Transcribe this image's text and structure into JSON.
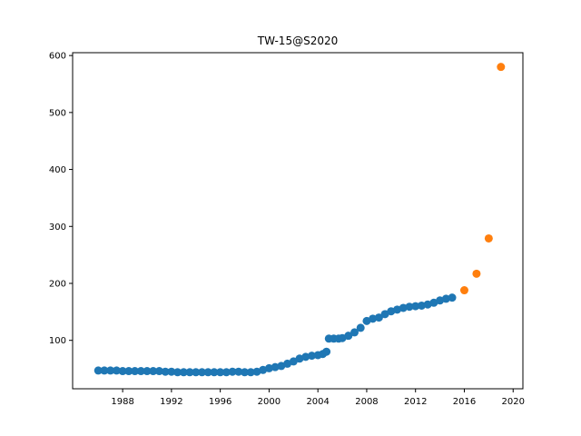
{
  "chart_data": {
    "type": "scatter",
    "title": "TW-15@S2020",
    "xlabel": "",
    "ylabel": "",
    "xlim": [
      1983.9,
      2020.8
    ],
    "ylim": [
      15,
      605
    ],
    "xticks": [
      1988,
      1992,
      1996,
      2000,
      2004,
      2008,
      2012,
      2016,
      2020
    ],
    "yticks": [
      100,
      200,
      300,
      400,
      500,
      600
    ],
    "grid": false,
    "legend": "none",
    "series": [
      {
        "color": "#1f77b4",
        "points": [
          [
            1986.0,
            47
          ],
          [
            1986.5,
            47
          ],
          [
            1987.0,
            47
          ],
          [
            1987.5,
            47
          ],
          [
            1988.0,
            46
          ],
          [
            1988.5,
            46
          ],
          [
            1989.0,
            46
          ],
          [
            1989.5,
            46
          ],
          [
            1990.0,
            46
          ],
          [
            1990.5,
            46
          ],
          [
            1991.0,
            46
          ],
          [
            1991.5,
            45
          ],
          [
            1992.0,
            45
          ],
          [
            1992.5,
            44
          ],
          [
            1993.0,
            44
          ],
          [
            1993.5,
            44
          ],
          [
            1994.0,
            44
          ],
          [
            1994.5,
            44
          ],
          [
            1995.0,
            44
          ],
          [
            1995.5,
            44
          ],
          [
            1996.0,
            44
          ],
          [
            1996.5,
            44
          ],
          [
            1997.0,
            45
          ],
          [
            1997.5,
            45
          ],
          [
            1998.0,
            44
          ],
          [
            1998.5,
            44
          ],
          [
            1999.0,
            45
          ],
          [
            1999.5,
            48
          ],
          [
            2000.0,
            51
          ],
          [
            2000.5,
            53
          ],
          [
            2001.0,
            55
          ],
          [
            2001.5,
            59
          ],
          [
            2002.0,
            63
          ],
          [
            2002.5,
            68
          ],
          [
            2003.0,
            71
          ],
          [
            2003.5,
            73
          ],
          [
            2004.0,
            74
          ],
          [
            2004.4,
            76
          ],
          [
            2004.7,
            80
          ],
          [
            2004.9,
            103
          ],
          [
            2005.3,
            103
          ],
          [
            2005.7,
            103
          ],
          [
            2006.0,
            104
          ],
          [
            2006.5,
            108
          ],
          [
            2007.0,
            114
          ],
          [
            2007.5,
            122
          ],
          [
            2008.0,
            134
          ],
          [
            2008.5,
            138
          ],
          [
            2009.0,
            140
          ],
          [
            2009.5,
            146
          ],
          [
            2010.0,
            151
          ],
          [
            2010.5,
            154
          ],
          [
            2011.0,
            157
          ],
          [
            2011.5,
            159
          ],
          [
            2012.0,
            160
          ],
          [
            2012.5,
            161
          ],
          [
            2013.0,
            163
          ],
          [
            2013.5,
            166
          ],
          [
            2014.0,
            170
          ],
          [
            2014.5,
            173
          ],
          [
            2015.0,
            175
          ]
        ]
      },
      {
        "color": "#ff7f0e",
        "points": [
          [
            2016.0,
            188
          ],
          [
            2017.0,
            217
          ],
          [
            2018.0,
            279
          ],
          [
            2019.0,
            580
          ]
        ]
      }
    ]
  }
}
